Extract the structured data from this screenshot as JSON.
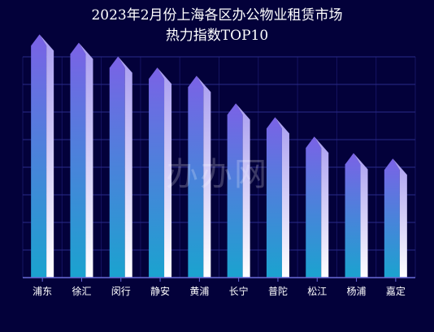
{
  "chart_data": {
    "type": "bar",
    "title_lines": [
      "2023年2月份上海各区办公物业租赁市场",
      "热力指数TOP10"
    ],
    "categories": [
      "浦东",
      "徐汇",
      "闵行",
      "静安",
      "黄浦",
      "长宁",
      "普陀",
      "松江",
      "杨浦",
      "嘉定"
    ],
    "values": [
      84,
      81,
      76,
      72,
      69,
      59,
      54,
      47,
      41,
      39
    ],
    "ylim": [
      0,
      80
    ],
    "grid": true,
    "legend": "none",
    "colors": {
      "background": "#03013a",
      "bar_top": "#7b62e6",
      "bar_bottom": "#1aa3cf",
      "bar_highlight": "#ffffff",
      "grid": "#2a2a8a",
      "axis": "#6a6ad8"
    }
  },
  "watermark": "办办网"
}
